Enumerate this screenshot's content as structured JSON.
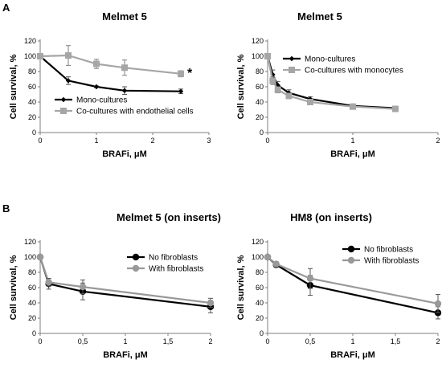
{
  "panel_labels": [
    "A",
    "B"
  ],
  "chart_data": [
    {
      "type": "line",
      "title": "Melmet 5",
      "xlabel": "BRAFi, μM",
      "ylabel": "Cell survival, %",
      "xlim": [
        0,
        3
      ],
      "ylim": [
        0,
        120
      ],
      "xticks": [
        0,
        1,
        2,
        3
      ],
      "xtick_labels": [
        "0",
        "1",
        "2",
        "3"
      ],
      "yticks": [
        0,
        20,
        40,
        60,
        80,
        100,
        120
      ],
      "legend_position": "bottom-left",
      "annotations": [
        {
          "text": "*",
          "near_series": 1
        }
      ],
      "series": [
        {
          "name": "Mono-cultures",
          "color": "#000000",
          "marker": "diamond",
          "x": [
            0,
            0.5,
            1,
            1.5,
            2.5
          ],
          "y": [
            100,
            68,
            60,
            55,
            54
          ],
          "err": [
            0,
            5,
            1,
            5,
            3
          ]
        },
        {
          "name": "Co-cultures with endothelial cells",
          "color": "#a6a6a6",
          "marker": "square",
          "x": [
            0,
            0.5,
            1,
            1.5,
            2.5
          ],
          "y": [
            100,
            101,
            90,
            85,
            77
          ],
          "err": [
            0,
            13,
            6,
            10,
            4
          ]
        }
      ]
    },
    {
      "type": "line",
      "title": "Melmet 5",
      "xlabel": "BRAFi, μM",
      "ylabel": "Cell survival, %",
      "xlim": [
        0,
        2
      ],
      "ylim": [
        0,
        120
      ],
      "xticks": [
        0,
        1,
        2
      ],
      "xtick_labels": [
        "0",
        "1",
        "2"
      ],
      "yticks": [
        0,
        20,
        40,
        60,
        80,
        100,
        120
      ],
      "legend_position": "top-right",
      "series": [
        {
          "name": "Mono-cultures",
          "color": "#000000",
          "marker": "diamond",
          "x": [
            0,
            0.06,
            0.12,
            0.25,
            0.5,
            1,
            1.5
          ],
          "y": [
            100,
            76,
            62,
            52,
            44,
            35,
            32
          ],
          "err": [
            0,
            6,
            5,
            4,
            3,
            2,
            2
          ]
        },
        {
          "name": "Co-cultures with monocytes",
          "color": "#a6a6a6",
          "marker": "square",
          "x": [
            0,
            0.06,
            0.12,
            0.25,
            0.5,
            1,
            1.5
          ],
          "y": [
            100,
            68,
            56,
            48,
            40,
            34,
            31
          ],
          "err": [
            0,
            5,
            4,
            3,
            2,
            2,
            2
          ]
        }
      ]
    },
    {
      "type": "line",
      "title": "Melmet 5 (on inserts)",
      "xlabel": "BRAFi, μM",
      "ylabel": "Cell survival, %",
      "xlim": [
        0,
        2
      ],
      "ylim": [
        0,
        120
      ],
      "xticks": [
        0,
        0.5,
        1,
        1.5,
        2
      ],
      "xtick_labels": [
        "0",
        "0,5",
        "1",
        "1,5",
        "2"
      ],
      "yticks": [
        0,
        20,
        40,
        60,
        80,
        100,
        120
      ],
      "legend_position": "top-right",
      "series": [
        {
          "name": "No fibroblasts",
          "color": "#000000",
          "marker": "circle",
          "x": [
            0,
            0.1,
            0.5,
            2
          ],
          "y": [
            100,
            65,
            55,
            35
          ],
          "err": [
            0,
            7,
            11,
            8
          ]
        },
        {
          "name": "With fibroblasts",
          "color": "#999999",
          "marker": "circle",
          "x": [
            0,
            0.1,
            0.5,
            2
          ],
          "y": [
            100,
            67,
            61,
            40
          ],
          "err": [
            0,
            5,
            9,
            6
          ]
        }
      ]
    },
    {
      "type": "line",
      "title": "HM8 (on inserts)",
      "xlabel": "BRAFi, μM",
      "ylabel": "Cell survival, %",
      "xlim": [
        0,
        2
      ],
      "ylim": [
        0,
        120
      ],
      "xticks": [
        0,
        0.5,
        1,
        1.5,
        2
      ],
      "xtick_labels": [
        "0",
        "0,5",
        "1",
        "1,5",
        "2"
      ],
      "yticks": [
        0,
        20,
        40,
        60,
        80,
        100,
        120
      ],
      "legend_position": "top-right",
      "series": [
        {
          "name": "No fibroblasts",
          "color": "#000000",
          "marker": "circle",
          "x": [
            0,
            0.1,
            0.5,
            2
          ],
          "y": [
            100,
            90,
            63,
            27
          ],
          "err": [
            0,
            3,
            13,
            8
          ]
        },
        {
          "name": "With fibroblasts",
          "color": "#999999",
          "marker": "circle",
          "x": [
            0,
            0.1,
            0.5,
            2
          ],
          "y": [
            100,
            91,
            72,
            39
          ],
          "err": [
            0,
            3,
            13,
            12
          ]
        }
      ]
    }
  ]
}
